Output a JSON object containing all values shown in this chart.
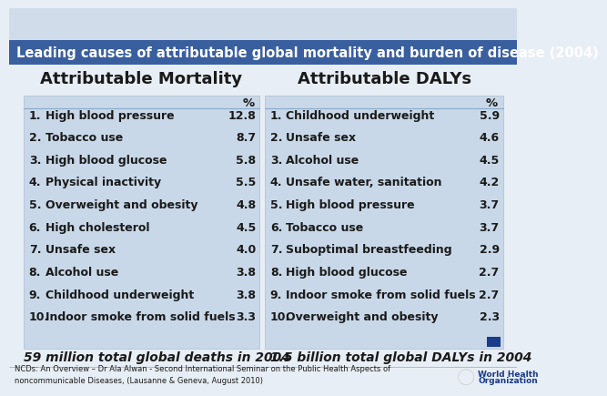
{
  "title": "Leading causes of attributable global mortality and burden of disease (2004)",
  "title_bg": "#3a5f9f",
  "title_color": "#ffffff",
  "table_bg": "#c8d8e8",
  "header_left": "Attributable Mortality",
  "header_right": "Attributable DALYs",
  "col_header": "%",
  "left_items": [
    [
      "1.",
      "High blood pressure",
      "12.8"
    ],
    [
      "2.",
      "Tobacco use",
      "8.7"
    ],
    [
      "3.",
      "High blood glucose",
      "5.8"
    ],
    [
      "4.",
      "Physical inactivity",
      "5.5"
    ],
    [
      "5.",
      "Overweight and obesity",
      "4.8"
    ],
    [
      "6.",
      "High cholesterol",
      "4.5"
    ],
    [
      "7.",
      "Unsafe sex",
      "4.0"
    ],
    [
      "8.",
      "Alcohol use",
      "3.8"
    ],
    [
      "9.",
      "Childhood underweight",
      "3.8"
    ],
    [
      "10.",
      "Indoor smoke from solid fuels",
      "3.3"
    ]
  ],
  "right_items": [
    [
      "1.",
      "Childhood underweight",
      "5.9"
    ],
    [
      "2.",
      "Unsafe sex",
      "4.6"
    ],
    [
      "3.",
      "Alcohol use",
      "4.5"
    ],
    [
      "4.",
      "Unsafe water, sanitation",
      "4.2"
    ],
    [
      "5.",
      "High blood pressure",
      "3.7"
    ],
    [
      "6.",
      "Tobacco use",
      "3.7"
    ],
    [
      "7.",
      "Suboptimal breastfeeding",
      "2.9"
    ],
    [
      "8.",
      "High blood glucose",
      "2.7"
    ],
    [
      "9.",
      "Indoor smoke from solid fuels",
      "2.7"
    ],
    [
      "10.",
      "Overweight and obesity",
      "2.3"
    ]
  ],
  "footer_left": "59 million total global deaths in 2004",
  "footer_right": "1.5 billion total global DALYs in 2004",
  "footnote": "NCDs: An Overview – Dr Ala Alwan - Second International Seminar on the Public Health Aspects of\nnoncommunicable Diseases, (Lausanne & Geneva, August 2010)",
  "bg_top": "#d0dcea",
  "bg_bottom": "#e8eef5",
  "divider_color": "#8aaac8",
  "text_color": "#1a1a1a"
}
